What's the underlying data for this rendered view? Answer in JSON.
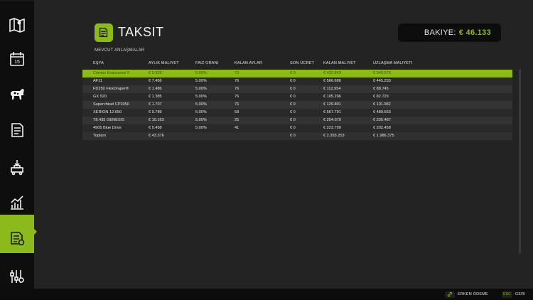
{
  "header": {
    "title": "TAKSIT",
    "icon": "installment-document-icon"
  },
  "balance": {
    "label": "BAKIYE:",
    "value": "€ 46.133"
  },
  "section_title": "MEVCUT ANLAŞMALAR",
  "table": {
    "columns": [
      "EŞYA",
      "AYLIK MALIYET",
      "FAIZ ORANI",
      "KALAN AYLAR",
      "SON ÜCRET",
      "KALAN MALIYET",
      "UZLAŞMA MALIYETI"
    ],
    "rows": [
      [
        "Combo Endurance II",
        "€ 5.929",
        "5.00%",
        "73",
        "€ 0",
        "€ 432.843",
        "€ 340.075"
      ],
      [
        "AF11",
        "€ 7.456",
        "5.00%",
        "76",
        "€ 0",
        "€ 566.686",
        "€ 445.233"
      ],
      [
        "FD250 FlexDraper®",
        "€ 1.486",
        "5.00%",
        "76",
        "€ 0",
        "€ 112.954",
        "€ 88.745"
      ],
      [
        "GX 520",
        "€ 1.385",
        "5.00%",
        "76",
        "€ 0",
        "€ 105.296",
        "€ 82.729"
      ],
      [
        "Superchisel CP2050",
        "€ 1.707",
        "5.00%",
        "76",
        "€ 0",
        "€ 129.801",
        "€ 101.982"
      ],
      [
        "XERION 12.650",
        "€ 9.789",
        "5.00%",
        "58",
        "€ 0",
        "€ 567.791",
        "€ 489.663"
      ],
      [
        "T8.435 GENESIS",
        "€ 10.163",
        "5.00%",
        "25",
        "€ 0",
        "€ 254.079",
        "€ 235.487"
      ],
      [
        "4905 Blue Drive",
        "€ 5.458",
        "5.00%",
        "41",
        "€ 0",
        "€ 223.799",
        "€ 202.458"
      ]
    ],
    "selected_index": 0,
    "total": [
      "Toplam",
      "€ 43.376",
      "",
      "",
      "€ 0",
      "€ 2.393.253",
      "€ 1.986.375"
    ]
  },
  "sidebar": {
    "items": [
      {
        "icon": "map-icon"
      },
      {
        "icon": "calendar-icon"
      },
      {
        "icon": "animals-icon"
      },
      {
        "icon": "contracts-icon"
      },
      {
        "icon": "production-icon"
      },
      {
        "icon": "statistics-icon"
      },
      {
        "icon": "finances-icon",
        "active": true
      },
      {
        "icon": "settings-icon"
      }
    ]
  },
  "footer": {
    "early_pay_key": "link-icon",
    "early_pay_label": "ERKEN ÖDEME",
    "back_key": "ESC",
    "back_label": "GERI"
  },
  "colors": {
    "accent": "#8cba1c",
    "background": "#232323",
    "sidebar": "#0e0e0e"
  }
}
